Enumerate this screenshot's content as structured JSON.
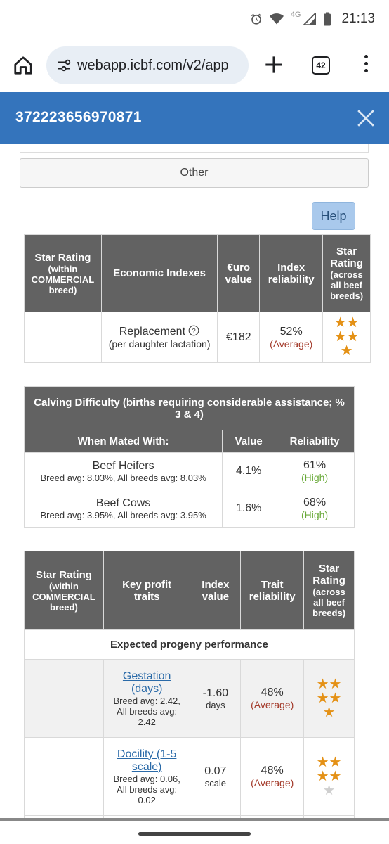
{
  "status_bar": {
    "network": "4G",
    "time": "21:13"
  },
  "browser": {
    "url": "webapp.icbf.com/v2/app",
    "tab_count": "42"
  },
  "header": {
    "title": "372223656970871"
  },
  "tabs": {
    "other": "Other"
  },
  "help_label": "Help",
  "economic_table": {
    "headers": {
      "star_rating_title": "Star Rating",
      "star_rating_sub1": "(within",
      "star_rating_sub2": "COMMERCIAL",
      "star_rating_sub3": "breed)",
      "indexes": "Economic Indexes",
      "euro_1": "€uro",
      "euro_2": "value",
      "reliability_1": "Index",
      "reliability_2": "reliability",
      "across_1": "Star",
      "across_2": "Rating",
      "across_3": "(across",
      "across_4": "all beef",
      "across_5": "breeds)"
    },
    "row": {
      "label": "Replacement",
      "sublabel": "(per daughter lactation)",
      "value": "€182",
      "reliability": "52%",
      "reliability_level": "(Average)",
      "stars": 5
    }
  },
  "calving_table": {
    "title": "Calving Difficulty (births requiring considerable assistance; % 3 & 4)",
    "headers": {
      "mated": "When Mated With:",
      "value": "Value",
      "reliability": "Reliability"
    },
    "rows": [
      {
        "label": "Beef Heifers",
        "sub": "Breed avg: 8.03%, All breeds avg: 8.03%",
        "value": "4.1%",
        "reliability": "61%",
        "level": "(High)"
      },
      {
        "label": "Beef Cows",
        "sub": "Breed avg: 3.95%, All breeds avg: 3.95%",
        "value": "1.6%",
        "reliability": "68%",
        "level": "(High)"
      }
    ]
  },
  "profit_table": {
    "headers": {
      "star_rating_title": "Star Rating",
      "star_rating_sub1": "(within",
      "star_rating_sub2": "COMMERCIAL",
      "star_rating_sub3": "breed)",
      "traits_1": "Key profit",
      "traits_2": "traits",
      "index_1": "Index",
      "index_2": "value",
      "trait_rel_1": "Trait",
      "trait_rel_2": "reliability",
      "across_1": "Star",
      "across_2": "Rating",
      "across_3": "(across",
      "across_4": "all beef",
      "across_5": "breeds)"
    },
    "section": "Expected progeny performance",
    "rows": [
      {
        "trait_1": "Gestation",
        "trait_2": "(days)",
        "avg_1": "Breed avg: 2.42,",
        "avg_2": "All breeds avg:",
        "avg_3": "2.42",
        "value": "-1.60",
        "unit": "days",
        "reliability": "48%",
        "level": "(Average)",
        "stars": 5
      },
      {
        "trait_1": "Docility (1-5",
        "trait_2": "scale)",
        "avg_1": "Breed avg: 0.06,",
        "avg_2": "All breeds avg:",
        "avg_3": "0.02",
        "value": "0.07",
        "unit": "scale",
        "reliability": "48%",
        "level": "(Average)",
        "stars": 4
      }
    ]
  },
  "colors": {
    "header_blue": "#3474bc",
    "table_header": "#626262",
    "star": "#e49116",
    "average_red": "#a33a2a",
    "high_green": "#6aaa3a"
  }
}
